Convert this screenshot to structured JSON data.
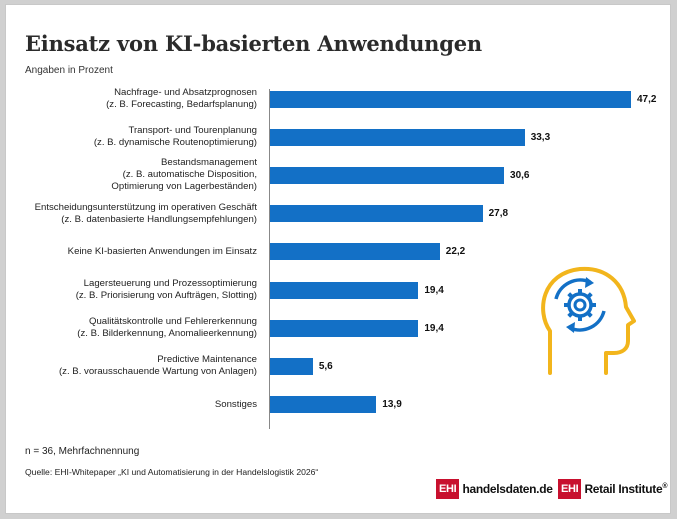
{
  "chart_data": {
    "type": "bar",
    "orientation": "horizontal",
    "title": "Einsatz von KI-basierten Anwendungen",
    "subtitle": "Angaben in Prozent",
    "categories": [
      [
        "Nachfrage- und Absatzprognosen",
        "(z. B. Forecasting, Bedarfsplanung)"
      ],
      [
        "Transport- und Tourenplanung",
        "(z. B. dynamische Routenoptimierung)"
      ],
      [
        "Bestandsmanagement",
        "(z. B. automatische Disposition,",
        "Optimierung von Lagerbeständen)"
      ],
      [
        "Entscheidungsunterstützung im operativen Geschäft",
        "(z. B. datenbasierte Handlungsempfehlungen)"
      ],
      [
        "Keine KI-basierten Anwendungen im Einsatz"
      ],
      [
        "Lagersteuerung und Prozessoptimierung",
        "(z. B. Priorisierung von Aufträgen, Slotting)"
      ],
      [
        "Qualitätskontrolle und Fehlererkennung",
        "(z. B. Bilderkennung, Anomalieerkennung)"
      ],
      [
        "Predictive Maintenance",
        "(z. B. vorausschauende Wartung von Anlagen)"
      ],
      [
        "Sonstiges"
      ]
    ],
    "values": [
      47.2,
      33.3,
      30.6,
      27.8,
      22.2,
      19.4,
      19.4,
      5.6,
      13.9
    ],
    "value_labels": [
      "47,2",
      "33,3",
      "30,6",
      "27,8",
      "22,2",
      "19,4",
      "19,4",
      "5,6",
      "13,9"
    ],
    "xlim": [
      0,
      47.2
    ],
    "bar_color": "#1370c6",
    "grid": false,
    "note": "n = 36, Mehrfachnennung",
    "source": "Quelle: EHI-Whitepaper „KI und Automatisierung in der Handelslogistik 2026“"
  },
  "logos": {
    "ehi": "EHI",
    "handelsdaten": "handelsdaten.de",
    "retail_institute": "Retail Institute"
  },
  "colors": {
    "accent": "#1370c6",
    "icon_head": "#f2b51c",
    "brand_red": "#c8102e"
  }
}
